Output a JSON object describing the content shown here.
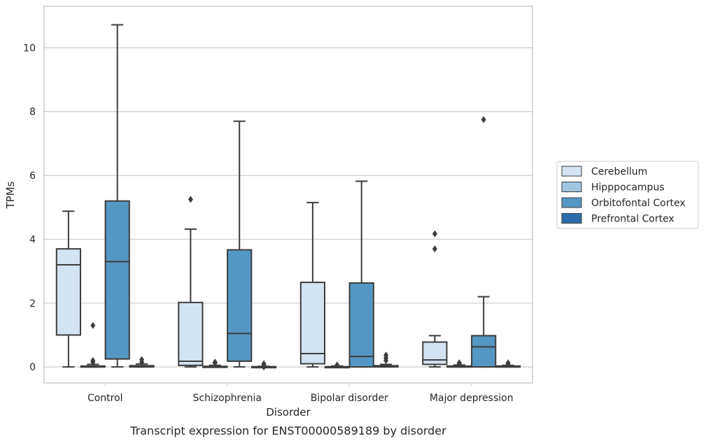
{
  "chart_data": {
    "type": "box",
    "xlabel": "Disorder",
    "ylabel": "TPMs",
    "caption": "Transcript expression for ENST00000589189 by disorder",
    "ylim": [
      -0.5,
      11.3
    ],
    "yticks": [
      0,
      2,
      4,
      6,
      8,
      10
    ],
    "grid": "horizontal",
    "legend_position": "right",
    "categories": [
      "Control",
      "Schizophrenia",
      "Bipolar disorder",
      "Major depression"
    ],
    "series": [
      {
        "name": "Cerebellum",
        "color": "#d4e3f1",
        "boxes": [
          {
            "whislo": 0.0,
            "q1": 1.0,
            "median": 3.2,
            "q3": 3.7,
            "whishi": 4.88,
            "fliers": []
          },
          {
            "whislo": 0.0,
            "q1": 0.05,
            "median": 0.18,
            "q3": 2.02,
            "whishi": 4.32,
            "fliers": [
              5.25
            ]
          },
          {
            "whislo": 0.0,
            "q1": 0.1,
            "median": 0.42,
            "q3": 2.65,
            "whishi": 5.15,
            "fliers": []
          },
          {
            "whislo": 0.0,
            "q1": 0.08,
            "median": 0.22,
            "q3": 0.78,
            "whishi": 0.98,
            "fliers": [
              3.7,
              4.17
            ]
          }
        ]
      },
      {
        "name": "Hipppocampus",
        "color": "#9fc5e0",
        "boxes": [
          {
            "whislo": 0.0,
            "q1": 0.0,
            "median": 0.01,
            "q3": 0.03,
            "whishi": 0.08,
            "fliers": [
              1.3,
              0.15,
              0.2
            ]
          },
          {
            "whislo": 0.0,
            "q1": 0.0,
            "median": 0.0,
            "q3": 0.02,
            "whishi": 0.05,
            "fliers": [
              0.12,
              0.15
            ]
          },
          {
            "whislo": 0.0,
            "q1": 0.0,
            "median": 0.0,
            "q3": 0.01,
            "whishi": 0.03,
            "fliers": [
              0.06
            ]
          },
          {
            "whislo": 0.0,
            "q1": 0.0,
            "median": 0.01,
            "q3": 0.03,
            "whishi": 0.06,
            "fliers": [
              0.1,
              0.13
            ]
          }
        ]
      },
      {
        "name": "Orbitofontal Cortex",
        "color": "#5597c4",
        "boxes": [
          {
            "whislo": 0.0,
            "q1": 0.25,
            "median": 3.3,
            "q3": 5.2,
            "whishi": 10.72,
            "fliers": []
          },
          {
            "whislo": 0.0,
            "q1": 0.18,
            "median": 1.05,
            "q3": 3.67,
            "whishi": 7.7,
            "fliers": []
          },
          {
            "whislo": 0.0,
            "q1": 0.0,
            "median": 0.33,
            "q3": 2.63,
            "whishi": 5.82,
            "fliers": []
          },
          {
            "whislo": 0.0,
            "q1": 0.0,
            "median": 0.63,
            "q3": 0.98,
            "whishi": 2.2,
            "fliers": [
              7.75
            ]
          }
        ]
      },
      {
        "name": "Prefrontal Cortex",
        "color": "#2c6ea9",
        "boxes": [
          {
            "whislo": 0.0,
            "q1": 0.0,
            "median": 0.01,
            "q3": 0.04,
            "whishi": 0.09,
            "fliers": [
              0.15,
              0.23
            ]
          },
          {
            "whislo": 0.0,
            "q1": 0.0,
            "median": 0.0,
            "q3": 0.01,
            "whishi": 0.02,
            "fliers": [
              0.0,
              0.05,
              0.1
            ]
          },
          {
            "whislo": 0.0,
            "q1": 0.0,
            "median": 0.01,
            "q3": 0.04,
            "whishi": 0.08,
            "fliers": [
              0.2,
              0.28,
              0.37
            ]
          },
          {
            "whislo": 0.0,
            "q1": 0.0,
            "median": 0.01,
            "q3": 0.03,
            "whishi": 0.05,
            "fliers": [
              0.1,
              0.13
            ]
          }
        ]
      }
    ]
  }
}
